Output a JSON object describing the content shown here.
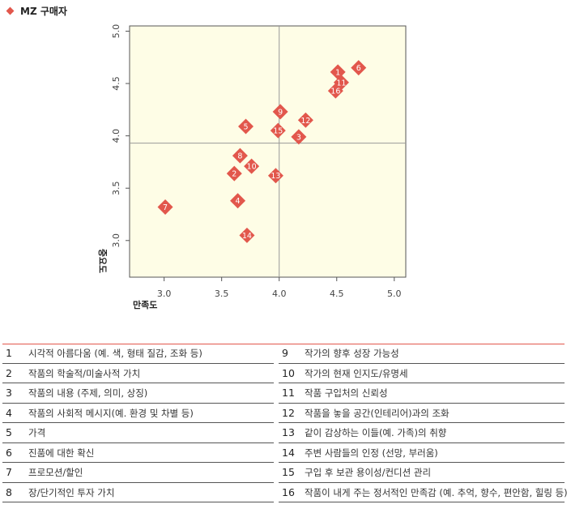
{
  "title": "MZ 구매자",
  "chart_data": {
    "type": "scatter",
    "xlabel": "만족도",
    "ylabel": "중요도",
    "xlim": [
      2.7,
      5.1
    ],
    "ylim": [
      2.65,
      5.05
    ],
    "xticks": [
      3.0,
      3.5,
      4.0,
      4.5,
      5.0
    ],
    "yticks": [
      3.0,
      3.5,
      4.0,
      4.5,
      5.0
    ],
    "x_tick_labels": [
      "3.0",
      "3.5",
      "4.0",
      "4.5",
      "5.0"
    ],
    "y_tick_labels": [
      "3.0",
      "3.5",
      "4.0",
      "4.5",
      "5.0"
    ],
    "mean_lines": {
      "x": 4.0,
      "y": 3.93
    },
    "grid": false,
    "background_color": "#fefde6",
    "marker_color": "#e2574c",
    "points": [
      {
        "label": "1",
        "x": 4.51,
        "y": 4.61
      },
      {
        "label": "2",
        "x": 3.61,
        "y": 3.64
      },
      {
        "label": "3",
        "x": 4.17,
        "y": 3.99
      },
      {
        "label": "4",
        "x": 3.64,
        "y": 3.38
      },
      {
        "label": "5",
        "x": 3.71,
        "y": 4.09
      },
      {
        "label": "6",
        "x": 4.69,
        "y": 4.65
      },
      {
        "label": "7",
        "x": 3.01,
        "y": 3.32
      },
      {
        "label": "8",
        "x": 3.66,
        "y": 3.81
      },
      {
        "label": "9",
        "x": 4.01,
        "y": 4.23
      },
      {
        "label": "10",
        "x": 3.76,
        "y": 3.71
      },
      {
        "label": "11",
        "x": 4.54,
        "y": 4.51
      },
      {
        "label": "12",
        "x": 4.23,
        "y": 4.15
      },
      {
        "label": "13",
        "x": 3.97,
        "y": 3.62
      },
      {
        "label": "14",
        "x": 3.72,
        "y": 3.05
      },
      {
        "label": "15",
        "x": 3.99,
        "y": 4.05
      },
      {
        "label": "16",
        "x": 4.49,
        "y": 4.43
      }
    ]
  },
  "legend": {
    "left": [
      {
        "num": "1",
        "label": "시각적 아름다움 (예. 색, 형태 질감, 조화 등)"
      },
      {
        "num": "2",
        "label": "작품의 학술적/미술사적 가치"
      },
      {
        "num": "3",
        "label": "작품의 내용 (주제, 의미, 상징)"
      },
      {
        "num": "4",
        "label": "작품의 사회적 메시지(예. 환경 및 차별 등)"
      },
      {
        "num": "5",
        "label": "가격"
      },
      {
        "num": "6",
        "label": "진품에 대한 확신"
      },
      {
        "num": "7",
        "label": "프로모션/할인"
      },
      {
        "num": "8",
        "label": "장/단기적인 투자 가치"
      }
    ],
    "right": [
      {
        "num": "9",
        "label": "작가의 향후 성장 가능성"
      },
      {
        "num": "10",
        "label": "작가의 현재 인지도/유명세"
      },
      {
        "num": "11",
        "label": "작품 구입처의 신뢰성"
      },
      {
        "num": "12",
        "label": "작품을 놓을 공간(인테리어)과의 조화"
      },
      {
        "num": "13",
        "label": "같이 감상하는 이들(예. 가족)의 취향"
      },
      {
        "num": "14",
        "label": "주변 사람들의 인정 (선망, 부러움)"
      },
      {
        "num": "15",
        "label": "구입 후 보관 용이성/컨디션 관리"
      },
      {
        "num": "16",
        "label": "작품이 내게 주는 정서적인 만족감 (예. 추억, 향수, 편안함, 힐링 등)"
      }
    ]
  }
}
